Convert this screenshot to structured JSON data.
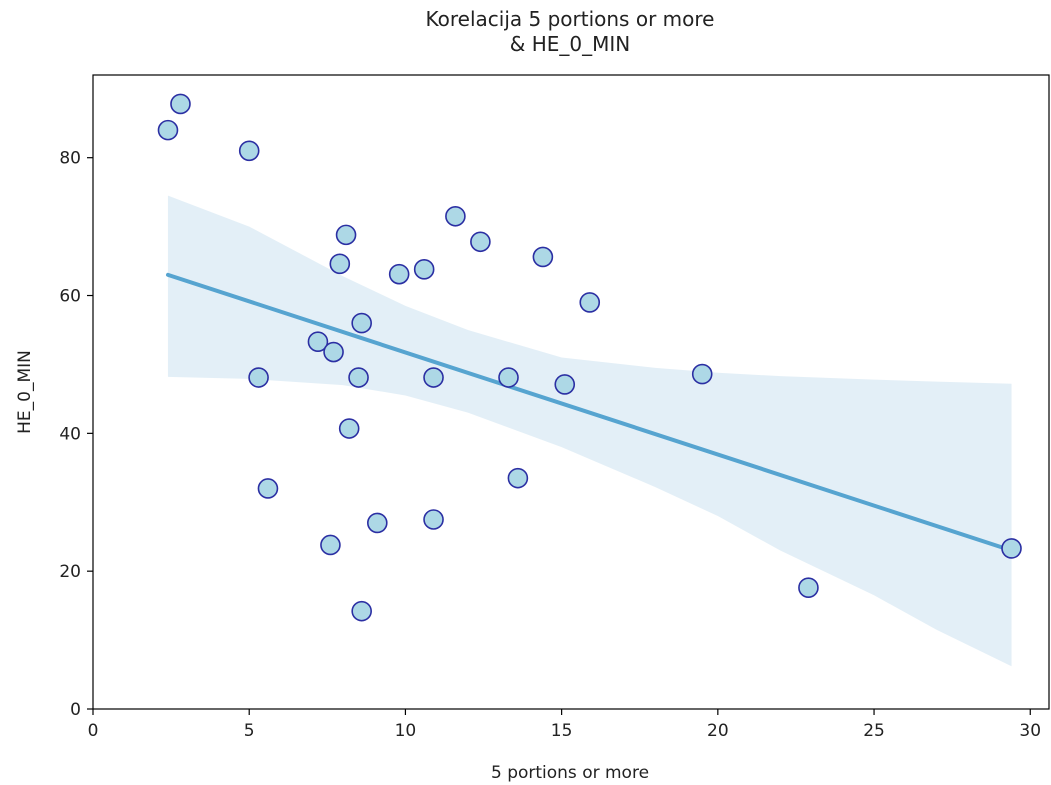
{
  "chart_data": {
    "type": "scatter",
    "title_lines": [
      "Korelacija 5 portions or more",
      "& HE_0_MIN"
    ],
    "xlabel": "5 portions or more",
    "ylabel": "HE_0_MIN",
    "xlim": [
      0,
      30.6
    ],
    "ylim": [
      0,
      92
    ],
    "xticks": [
      0,
      5,
      10,
      15,
      20,
      25,
      30
    ],
    "yticks": [
      0,
      20,
      40,
      60,
      80
    ],
    "grid": false,
    "points": [
      {
        "x": 2.4,
        "y": 84.0
      },
      {
        "x": 2.8,
        "y": 87.8
      },
      {
        "x": 5.0,
        "y": 81.0
      },
      {
        "x": 5.3,
        "y": 48.1
      },
      {
        "x": 5.6,
        "y": 32.0
      },
      {
        "x": 7.2,
        "y": 53.3
      },
      {
        "x": 7.6,
        "y": 23.8
      },
      {
        "x": 7.7,
        "y": 51.8
      },
      {
        "x": 7.9,
        "y": 64.6
      },
      {
        "x": 8.1,
        "y": 68.8
      },
      {
        "x": 8.2,
        "y": 40.7
      },
      {
        "x": 8.5,
        "y": 48.1
      },
      {
        "x": 8.6,
        "y": 56.0
      },
      {
        "x": 8.6,
        "y": 14.2
      },
      {
        "x": 9.1,
        "y": 27.0
      },
      {
        "x": 9.8,
        "y": 63.1
      },
      {
        "x": 10.6,
        "y": 63.8
      },
      {
        "x": 10.9,
        "y": 48.1
      },
      {
        "x": 10.9,
        "y": 27.5
      },
      {
        "x": 11.6,
        "y": 71.5
      },
      {
        "x": 12.4,
        "y": 67.8
      },
      {
        "x": 13.3,
        "y": 48.1
      },
      {
        "x": 13.6,
        "y": 33.5
      },
      {
        "x": 14.4,
        "y": 65.6
      },
      {
        "x": 15.1,
        "y": 47.1
      },
      {
        "x": 15.9,
        "y": 59.0
      },
      {
        "x": 19.5,
        "y": 48.6
      },
      {
        "x": 22.9,
        "y": 17.6
      },
      {
        "x": 29.4,
        "y": 23.3
      }
    ],
    "regression": {
      "x": [
        2.4,
        29.4
      ],
      "y": [
        63.0,
        23.0
      ]
    },
    "confidence_band": {
      "x": [
        2.4,
        5,
        8,
        10,
        12,
        15,
        18,
        20,
        22,
        25,
        27,
        29.4
      ],
      "lower": [
        48.2,
        47.9,
        47.0,
        45.5,
        43.0,
        38.0,
        32.2,
        28.0,
        23.0,
        16.5,
        11.5,
        6.2
      ],
      "upper": [
        74.5,
        70.0,
        62.8,
        58.5,
        55.0,
        51.0,
        49.5,
        48.8,
        48.3,
        47.8,
        47.5,
        47.2
      ]
    },
    "colors": {
      "point_fill": "#add8e6",
      "point_edge": "#2b2fa3",
      "line": "#56a4d0",
      "band": "#c8dff0"
    }
  }
}
